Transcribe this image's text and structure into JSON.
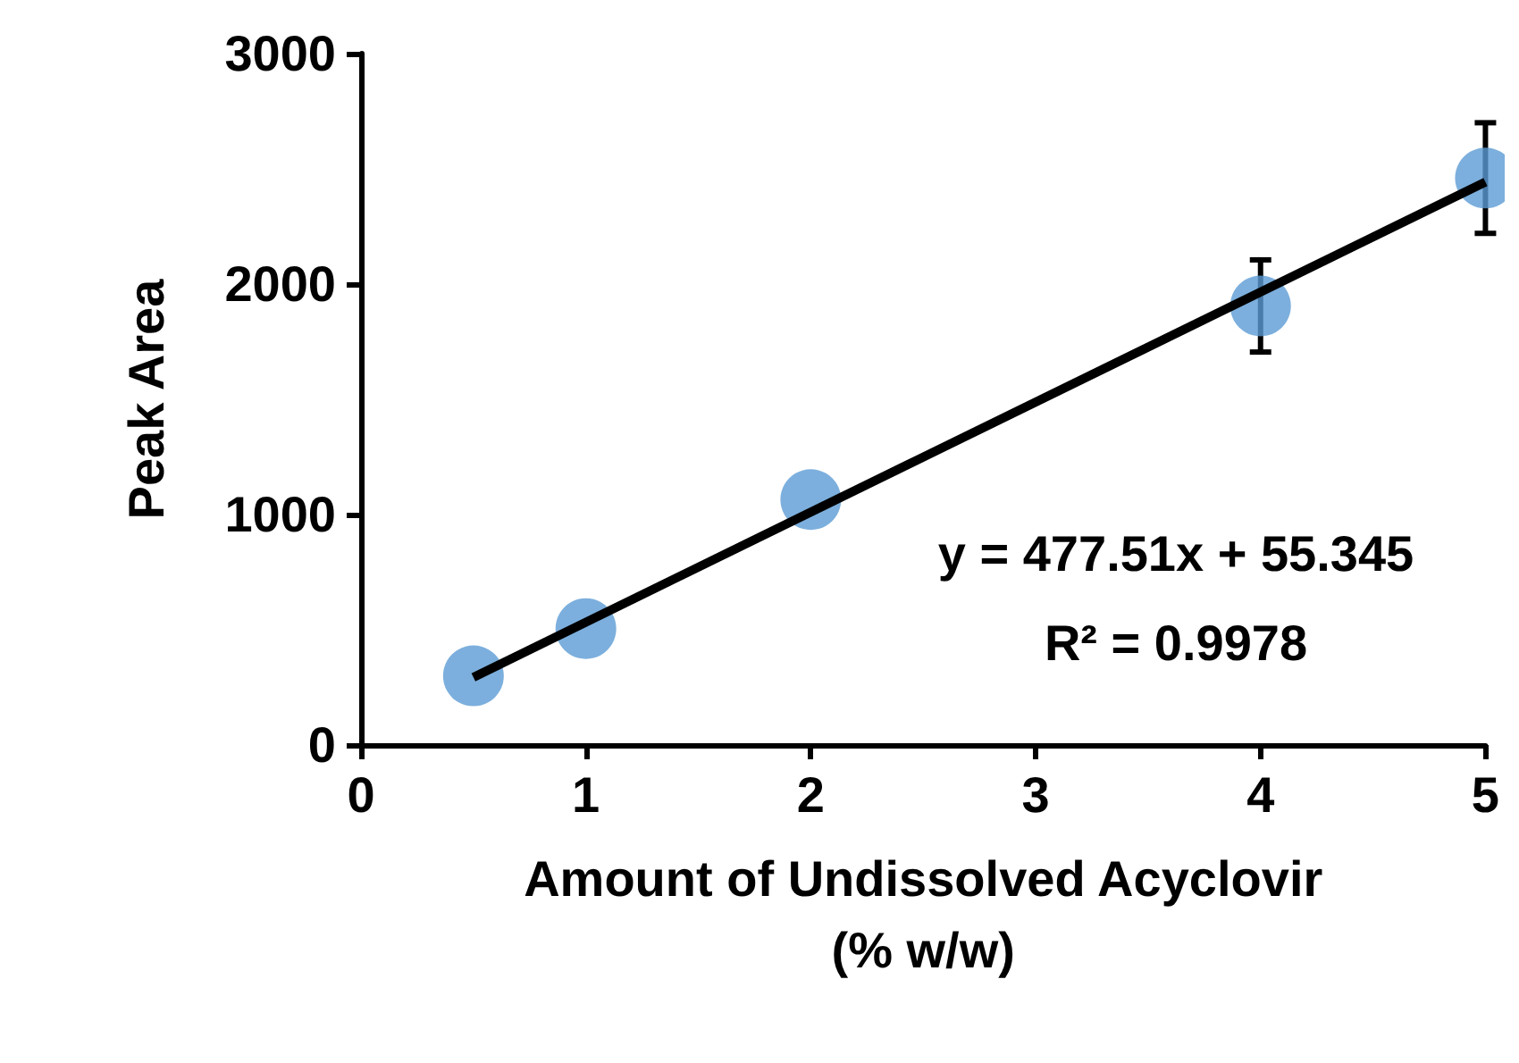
{
  "chart_data": {
    "type": "scatter",
    "xlabel": "Amount of Undissolved Acyclovir\n(% w/w)",
    "ylabel": "Peak Area",
    "x": [
      0.5,
      1,
      2,
      4,
      5
    ],
    "series": [
      {
        "color": "#5b9bd5",
        "values": [
          300,
          505,
          1065,
          1905,
          2460
        ],
        "errors": [
          null,
          null,
          null,
          200,
          240
        ]
      },
      {
        "type": "line",
        "marker": "none",
        "color": "#000000",
        "x": [
          0.5,
          5
        ],
        "values": [
          294,
          2443
        ]
      }
    ],
    "annotations": [
      "y = 477.51x + 55.345",
      "R² = 0.9978"
    ],
    "xlim": [
      0,
      5
    ],
    "xticks": [
      0,
      1,
      2,
      3,
      4,
      5
    ],
    "ylim": [
      0,
      3000
    ],
    "yticks": [
      0,
      1000,
      2000,
      3000
    ],
    "grid": false,
    "marker": "circle"
  }
}
